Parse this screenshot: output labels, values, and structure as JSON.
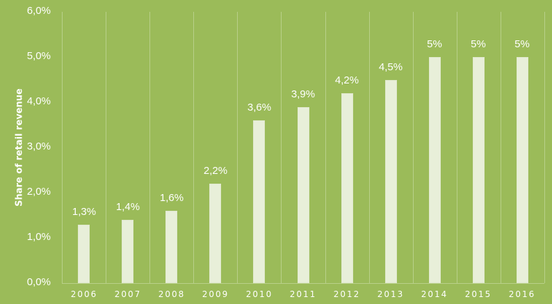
{
  "chart_data": {
    "type": "bar",
    "title": "",
    "xlabel": "",
    "ylabel": "Share of retail revenue",
    "categories": [
      "2006",
      "2007",
      "2008",
      "2009",
      "2010",
      "2011",
      "2012",
      "2013",
      "2014",
      "2015",
      "2016"
    ],
    "values": [
      1.3,
      1.4,
      1.6,
      2.2,
      3.6,
      3.9,
      4.2,
      4.5,
      5.0,
      5.0,
      5.0
    ],
    "data_labels": [
      "1,3%",
      "1,4%",
      "1,6%",
      "2,2%",
      "3,6%",
      "3,9%",
      "4,2%",
      "4,5%",
      "5%",
      "5%",
      "5%"
    ],
    "ylim": [
      0,
      6
    ],
    "yticks": [
      0,
      1,
      2,
      3,
      4,
      5,
      6
    ],
    "ytick_labels": [
      "0,0%",
      "1,0%",
      "2,0%",
      "3,0%",
      "4,0%",
      "5,0%",
      "6,0%"
    ],
    "grid": "vertical category separators",
    "legend": "none"
  },
  "colors": {
    "background": "#9bbb59",
    "bar": "#e8efd9",
    "grid": "#c3d79b",
    "text": "#ffffff"
  }
}
